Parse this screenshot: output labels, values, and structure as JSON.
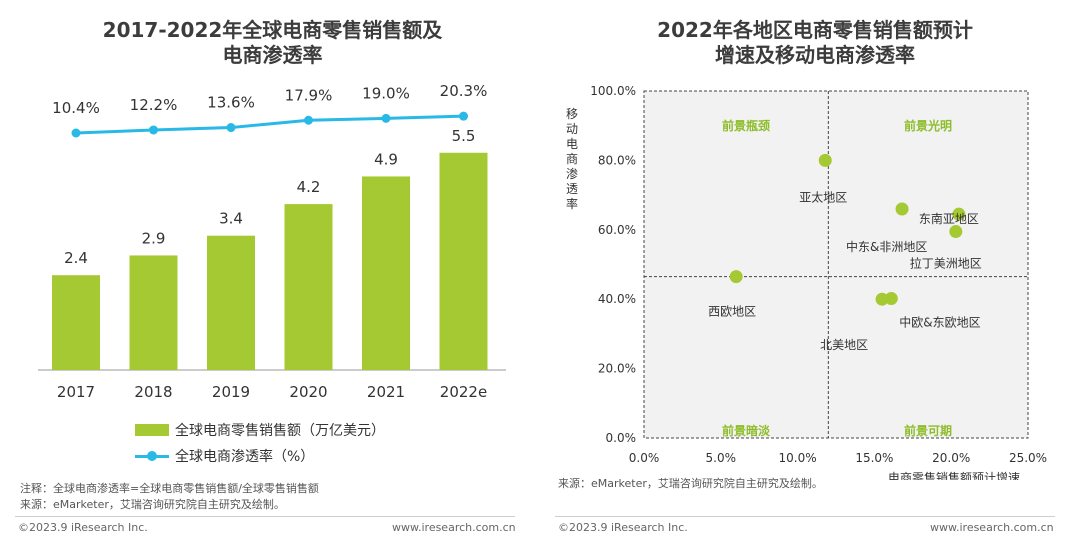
{
  "left": {
    "title_line1": "2017-2022年全球电商零售销售额及",
    "title_line2": "电商渗透率",
    "legend_bar": "全球电商零售销售额（万亿美元）",
    "legend_line": "全球电商渗透率（%）",
    "note1": "注释：全球电商渗透率=全球电商零售销售额/全球零售销售额",
    "note2": "来源：eMarketer，艾瑞咨询研究院自主研究及绘制。",
    "footer_left": "©2023.9 iResearch Inc.",
    "footer_right": "www.iresearch.com.cn"
  },
  "right": {
    "title_line1": "2022年各地区电商零售销售额预计",
    "title_line2": "增速及移动电商渗透率",
    "source": "来源：eMarketer，艾瑞咨询研究院自主研究及绘制。",
    "footer_left": "©2023.9 iResearch Inc.",
    "footer_right": "www.iresearch.com.cn"
  },
  "colors": {
    "bar": "#a5c932",
    "line": "#29b9e6",
    "dot": "#a5c932",
    "quadrant_label": "#8dbd2a",
    "plot_bg": "#f2f2f2"
  },
  "chart_data": [
    {
      "type": "bar",
      "title": "2017-2022年全球电商零售销售额及电商渗透率",
      "categories": [
        "2017",
        "2018",
        "2019",
        "2020",
        "2021",
        "2022e"
      ],
      "series": [
        {
          "name": "全球电商零售销售额（万亿美元）",
          "type": "bar",
          "values": [
            2.4,
            2.9,
            3.4,
            4.2,
            4.9,
            5.5
          ],
          "labels": [
            "2.4",
            "2.9",
            "3.4",
            "4.2",
            "4.9",
            "5.5"
          ]
        },
        {
          "name": "全球电商渗透率（%）",
          "type": "line",
          "values": [
            10.4,
            12.2,
            13.6,
            17.9,
            19.0,
            20.3
          ],
          "labels": [
            "10.4%",
            "12.2%",
            "13.6%",
            "17.9%",
            "19.0%",
            "20.3%"
          ]
        }
      ],
      "ylim": [
        0,
        6
      ]
    },
    {
      "type": "scatter",
      "title": "2022年各地区电商零售销售额预计增速及移动电商渗透率",
      "xlabel": "电商零售销售额预计增速",
      "ylabel": "移动电商渗透率",
      "xlim": [
        0,
        25
      ],
      "ylim": [
        0,
        100
      ],
      "xticks": [
        "0.0%",
        "5.0%",
        "10.0%",
        "15.0%",
        "20.0%",
        "25.0%"
      ],
      "yticks": [
        "0.0%",
        "20.0%",
        "40.0%",
        "60.0%",
        "80.0%",
        "100.0%"
      ],
      "divider_x": 12.0,
      "divider_y": 46.5,
      "quadrants": [
        "前景瓶颈",
        "前景光明",
        "前景暗淡",
        "前景可期"
      ],
      "points": [
        {
          "label": "亚太地区",
          "x": 11.8,
          "y": 80.0
        },
        {
          "label": "东南亚地区",
          "x": 20.5,
          "y": 64.5
        },
        {
          "label": "中东&非洲地区",
          "x": 16.8,
          "y": 66.0
        },
        {
          "label": "拉丁美洲地区",
          "x": 20.3,
          "y": 59.5
        },
        {
          "label": "西欧地区",
          "x": 6.0,
          "y": 46.5
        },
        {
          "label": "北美地区",
          "x": 15.5,
          "y": 40.0
        },
        {
          "label": "中欧&东欧地区",
          "x": 16.1,
          "y": 40.2
        }
      ]
    }
  ]
}
